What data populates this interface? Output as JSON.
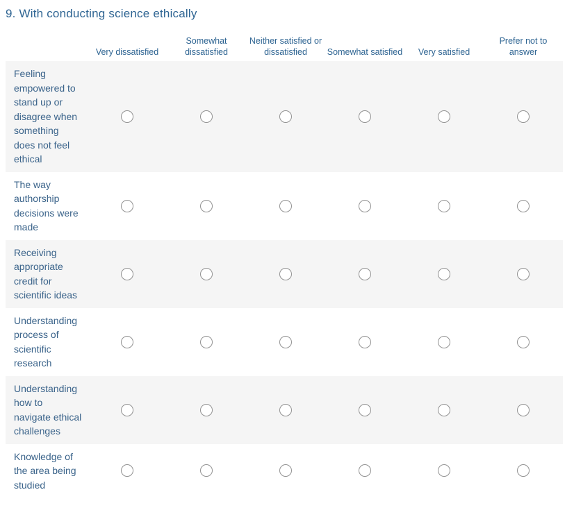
{
  "question": {
    "title": "9. With conducting science ethically"
  },
  "matrix": {
    "columns": [
      "Very dissatisfied",
      "Somewhat dissatisfied",
      "Neither satisfied or dissatisfied",
      "Somewhat satisfied",
      "Very satisfied",
      "Prefer not to answer"
    ],
    "rows": [
      {
        "label": "Feeling empowered to stand up or disagree when something does not feel ethical",
        "selected": null
      },
      {
        "label": "The way authorship decisions were made",
        "selected": null
      },
      {
        "label": "Receiving appropriate credit for scientific ideas",
        "selected": null
      },
      {
        "label": "Understanding process of scientific research",
        "selected": null
      },
      {
        "label": "Understanding how to navigate ethical challenges",
        "selected": null
      },
      {
        "label": "Knowledge of the area being studied",
        "selected": null
      }
    ]
  },
  "colors": {
    "title_blue": "#2e6492",
    "row_label_blue": "#3a638a",
    "row_stripe": "#f5f5f5",
    "radio_border": "#929292",
    "background": "#ffffff"
  }
}
